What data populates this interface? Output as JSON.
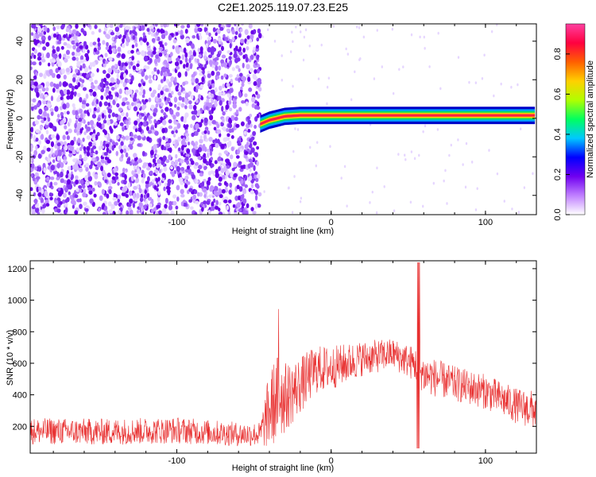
{
  "title": "C2E1.2025.119.07.23.E25",
  "chart_data": [
    {
      "type": "heatmap",
      "xlabel": "Height of straight line (km)",
      "ylabel": "Frequency (Hz)",
      "xlim": [
        -195,
        133
      ],
      "ylim": [
        -50,
        49
      ],
      "xticks": [
        -100,
        0,
        100
      ],
      "xtick_labels": [
        "-100",
        "0",
        "100"
      ],
      "yticks": [
        -40,
        -20,
        0,
        20,
        40
      ],
      "ytick_labels": [
        "-40",
        "-20",
        "0",
        "20",
        "40"
      ],
      "noise_region_x": [
        -195,
        -46
      ],
      "signal_band": {
        "x": [
          -46,
          -40,
          -30,
          -20,
          0,
          20,
          50,
          80,
          100,
          133
        ],
        "frequency_hz": [
          -3,
          -1,
          1,
          1.5,
          1.5,
          1.5,
          1.5,
          1.5,
          1.5,
          1.5
        ]
      },
      "colorbar": {
        "label": "Normalized spectral amplitude",
        "range": [
          0,
          0.95
        ],
        "ticks": [
          0,
          0.2,
          0.4,
          0.6,
          0.8
        ],
        "tick_labels": [
          "0.0",
          "0.2",
          "0.4",
          "0.6",
          "0.8"
        ],
        "colors": [
          "#ffffff",
          "#c080ff",
          "#7000f0",
          "#0000ff",
          "#00c8ff",
          "#00ff60",
          "#b0ff00",
          "#ffd000",
          "#ff6000",
          "#ff0040",
          "#ff40a0"
        ]
      },
      "grid": false
    },
    {
      "type": "line",
      "xlabel": "Height of straight line (km)",
      "ylabel": "SNR (10 * v/v)",
      "xlim": [
        -195,
        133
      ],
      "ylim": [
        30,
        1250
      ],
      "xticks": [
        -100,
        0,
        100
      ],
      "xtick_labels": [
        "-100",
        "0",
        "100"
      ],
      "yticks": [
        200,
        400,
        600,
        800,
        1000,
        1200
      ],
      "ytick_labels": [
        "200",
        "400",
        "600",
        "800",
        "1000",
        "1200"
      ],
      "series": [
        {
          "color": "#e83030",
          "envelope_x": [
            -195,
            -150,
            -100,
            -60,
            -46,
            -40,
            -35,
            -30,
            -20,
            -10,
            0,
            20,
            40,
            55,
            60,
            80,
            100,
            120,
            133
          ],
          "envelope_mean": [
            170,
            165,
            175,
            150,
            150,
            300,
            380,
            380,
            460,
            560,
            570,
            630,
            660,
            590,
            530,
            470,
            420,
            330,
            300
          ],
          "envelope_spread": [
            60,
            60,
            60,
            55,
            55,
            180,
            200,
            160,
            130,
            110,
            100,
            80,
            70,
            80,
            90,
            80,
            80,
            80,
            90
          ]
        }
      ],
      "grid": false
    }
  ]
}
